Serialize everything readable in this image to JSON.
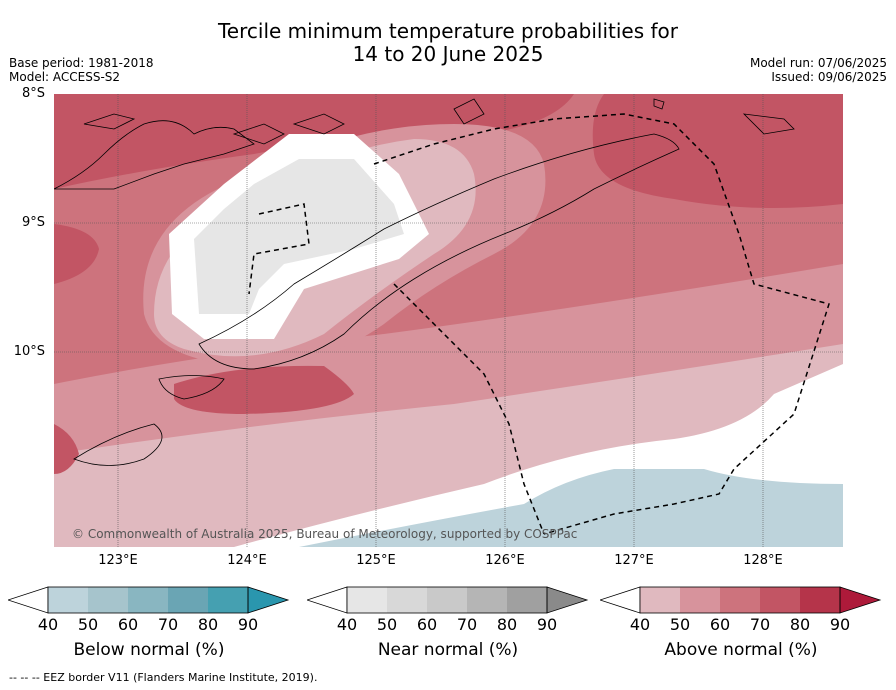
{
  "header": {
    "title_line1": "Tercile minimum temperature probabilities for",
    "title_line2": "14 to 20 June 2025",
    "base_period": "Base period: 1981-2018",
    "model": "Model: ACCESS-S2",
    "model_run": "Model run: 07/06/2025",
    "issued": "Issued: 09/06/2025"
  },
  "axes": {
    "lat_labels": [
      "8°S",
      "9°S",
      "10°S"
    ],
    "lon_labels": [
      "123°E",
      "124°E",
      "125°E",
      "126°E",
      "127°E",
      "128°E"
    ]
  },
  "map": {
    "copyright": "© Commonwealth of Australia 2025, Bureau of Meteorology, supported by COSPPac",
    "region_lat_range": [
      -11.5,
      -8.0
    ],
    "region_lon_range": [
      122.5,
      128.6
    ]
  },
  "colorbars": [
    {
      "label": "Below normal (%)",
      "ticks": [
        "40",
        "50",
        "60",
        "70",
        "80",
        "90"
      ],
      "colors": [
        "#bdd3db",
        "#a6c4cc",
        "#89b6c1",
        "#6aa5b4",
        "#45a0b1",
        "#2a96ae"
      ]
    },
    {
      "label": "Near normal (%)",
      "ticks": [
        "40",
        "50",
        "60",
        "70",
        "80",
        "90"
      ],
      "colors": [
        "#e6e6e6",
        "#d8d8d8",
        "#c9c9c9",
        "#b5b5b5",
        "#a0a0a0",
        "#8a8a8a"
      ]
    },
    {
      "label": "Above normal (%)",
      "ticks": [
        "40",
        "50",
        "60",
        "70",
        "80",
        "90"
      ],
      "colors": [
        "#e0b9bf",
        "#d7939c",
        "#cd737d",
        "#c25564",
        "#b5344a",
        "#ad1a3a"
      ]
    }
  ],
  "footer": "--  --  -- EEZ border V11 (Flanders Marine Institute, 2019)."
}
